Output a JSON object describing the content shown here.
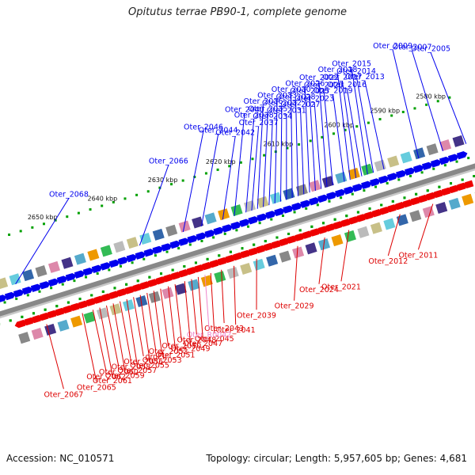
{
  "title": "Opitutus terrae PB90-1, complete genome",
  "footer": {
    "accession_label": "Accession: NC_010571",
    "topology_label": "Topology: circular; Length: 5,957,605 bp; Genes: 4,681"
  },
  "colors": {
    "backbone": "#888888",
    "tick": "#00a000",
    "plus_arrow": "#0000ee",
    "minus_arrow": "#ee0000",
    "plus_label": "#0000ee",
    "minus_label": "#dd0000",
    "rna_label": "#ee88cc"
  },
  "kbp_labels": [
    {
      "text": "2580 kbp",
      "tpos": 0.948
    },
    {
      "text": "2590 kbp",
      "tpos": 0.853
    },
    {
      "text": "2600 kbp",
      "tpos": 0.758
    },
    {
      "text": "2610 kbp",
      "tpos": 0.632
    },
    {
      "text": "2620 kbp",
      "tpos": 0.513
    },
    {
      "text": "2630 kbp",
      "tpos": 0.393
    },
    {
      "text": "2640 kbp",
      "tpos": 0.268
    },
    {
      "text": "2650 kbp",
      "tpos": 0.144
    }
  ],
  "plus_genes": [
    {
      "name": "Oter_2005",
      "tpos": 0.988
    },
    {
      "name": "Oter_2007",
      "tpos": 0.94
    },
    {
      "name": "Oter_2009",
      "tpos": 0.89
    },
    {
      "name": "Oter_2013",
      "tpos": 0.818
    },
    {
      "name": "Oter_2014",
      "tpos": 0.796
    },
    {
      "name": "Oter_2015",
      "tpos": 0.784
    },
    {
      "name": "Oter_2016",
      "tpos": 0.772
    },
    {
      "name": "Oter_2017",
      "tpos": 0.76
    },
    {
      "name": "Oter_2018",
      "tpos": 0.748
    },
    {
      "name": "Oter_2019",
      "tpos": 0.736
    },
    {
      "name": "Oter_2020",
      "tpos": 0.712
    },
    {
      "name": "Oter_2022",
      "tpos": 0.7
    },
    {
      "name": "Oter_2023",
      "tpos": 0.688
    },
    {
      "name": "Oter_2025",
      "tpos": 0.676
    },
    {
      "name": "Oter_2026",
      "tpos": 0.664
    },
    {
      "name": "Oter_2027",
      "tpos": 0.652
    },
    {
      "name": "Oter_2028",
      "tpos": 0.64
    },
    {
      "name": "Oter_2030",
      "tpos": 0.628
    },
    {
      "name": "Oter_2031",
      "tpos": 0.616
    },
    {
      "name": "Oter_2032",
      "tpos": 0.604
    },
    {
      "name": "Oter_2033",
      "tpos": 0.592
    },
    {
      "name": "Oter_2034",
      "tpos": 0.58
    },
    {
      "name": "Oter_2035",
      "tpos": 0.568
    },
    {
      "name": "Oter_2036",
      "tpos": 0.556
    },
    {
      "name": "Oter_2037",
      "tpos": 0.544
    },
    {
      "name": "Oter_2038",
      "tpos": 0.532
    },
    {
      "name": "Oter_2040",
      "tpos": 0.508
    },
    {
      "name": "Oter_2042",
      "tpos": 0.484
    },
    {
      "name": "Oter_2044",
      "tpos": 0.44
    },
    {
      "name": "Oter_2046",
      "tpos": 0.402
    },
    {
      "name": "Oter_2066",
      "tpos": 0.312
    },
    {
      "name": "Oter_2068",
      "tpos": 0.055
    }
  ],
  "minus_genes": [
    {
      "name": "Oter_2011",
      "tpos": 0.89
    },
    {
      "name": "Oter_2012",
      "tpos": 0.822
    },
    {
      "name": "Oter_2021",
      "tpos": 0.716
    },
    {
      "name": "Oter_2024",
      "tpos": 0.666
    },
    {
      "name": "Oter_2029",
      "tpos": 0.61
    },
    {
      "name": "Oter_2039",
      "tpos": 0.525
    },
    {
      "name": "Oter_2041",
      "tpos": 0.478
    },
    {
      "name": "Oter_2043",
      "tpos": 0.452
    },
    {
      "name": "Oter_2045",
      "tpos": 0.43
    },
    {
      "name": "Oter_R0042",
      "tpos": 0.418,
      "rna": true
    },
    {
      "name": "Oter_2047",
      "tpos": 0.404
    },
    {
      "name": "Oter_2048",
      "tpos": 0.39
    },
    {
      "name": "Oter_2049",
      "tpos": 0.376
    },
    {
      "name": "Oter_2050",
      "tpos": 0.356
    },
    {
      "name": "Oter_2051",
      "tpos": 0.342
    },
    {
      "name": "Oter_2052",
      "tpos": 0.326
    },
    {
      "name": "Oter_2053",
      "tpos": 0.312
    },
    {
      "name": "groEL",
      "tpos": 0.298
    },
    {
      "name": "Oter_2055",
      "tpos": 0.284
    },
    {
      "name": "Oter_2056",
      "tpos": 0.27
    },
    {
      "name": "Oter_2057",
      "tpos": 0.256
    },
    {
      "name": "Oter_2058",
      "tpos": 0.242
    },
    {
      "name": "Oter_2059",
      "tpos": 0.228
    },
    {
      "name": "Oter_2060",
      "tpos": 0.214
    },
    {
      "name": "Oter_2061",
      "tpos": 0.2
    },
    {
      "name": "Oter_2062",
      "tpos": 0.186
    },
    {
      "name": "Oter_2065",
      "tpos": 0.164
    },
    {
      "name": "Oter_2067",
      "tpos": 0.09
    }
  ]
}
